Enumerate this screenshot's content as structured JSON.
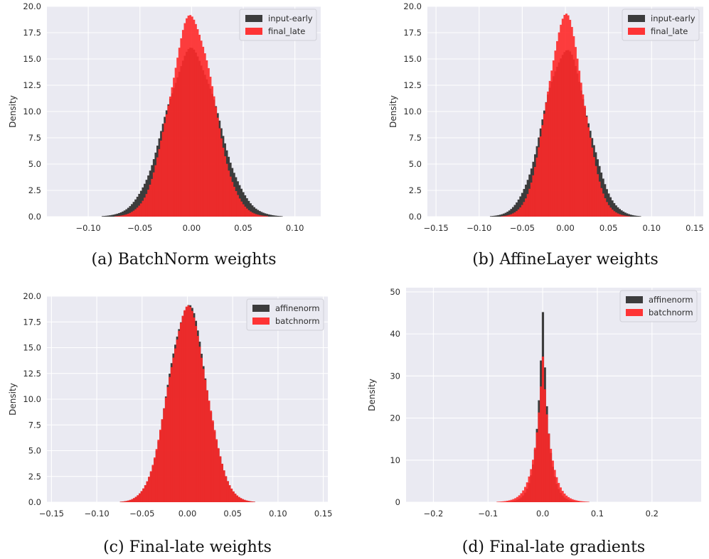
{
  "chart_data": [
    {
      "type": "histogram",
      "caption": "(a) BatchNorm weights",
      "ylabel": "Density",
      "xlim": [
        -0.14,
        0.125
      ],
      "ylim": [
        0,
        20
      ],
      "xticks": [
        -0.1,
        -0.05,
        0.0,
        0.05,
        0.1
      ],
      "xtick_labels": [
        "−0.10",
        "−0.05",
        "0.00",
        "0.05",
        "0.10"
      ],
      "yticks": [
        0,
        2.5,
        5,
        7.5,
        10,
        12.5,
        15,
        17.5,
        20
      ],
      "ytick_labels": [
        "0.0",
        "2.5",
        "5.0",
        "7.5",
        "10.0",
        "12.5",
        "15.0",
        "17.5",
        "20.0"
      ],
      "grid": true,
      "legend_position": "top-right",
      "series": [
        {
          "name": "input-early",
          "color": "#333333",
          "peak": 15.7,
          "std": 0.0254
        },
        {
          "name": "final_late",
          "color": "#ff2a2a",
          "peak": 18.9,
          "std": 0.0211
        }
      ]
    },
    {
      "type": "histogram",
      "caption": "(b) AffineLayer weights",
      "ylabel": "Density",
      "xlim": [
        -0.16,
        0.16
      ],
      "ylim": [
        0,
        20
      ],
      "xticks": [
        -0.15,
        -0.1,
        -0.05,
        0.0,
        0.05,
        0.1,
        0.15
      ],
      "xtick_labels": [
        "−0.15",
        "−0.10",
        "−0.05",
        "0.00",
        "0.05",
        "0.10",
        "0.15"
      ],
      "yticks": [
        0,
        2.5,
        5,
        7.5,
        10,
        12.5,
        15,
        17.5,
        20
      ],
      "ytick_labels": [
        "0.0",
        "2.5",
        "5.0",
        "7.5",
        "10.0",
        "12.5",
        "15.0",
        "17.5",
        "20.0"
      ],
      "grid": true,
      "legend_position": "top-right",
      "series": [
        {
          "name": "input-early",
          "color": "#333333",
          "peak": 15.7,
          "std": 0.0254
        },
        {
          "name": "final_late",
          "color": "#ff2a2a",
          "peak": 18.9,
          "std": 0.0211
        }
      ]
    },
    {
      "type": "histogram",
      "caption": "(c) Final-late weights",
      "ylabel": "Density",
      "xlim": [
        -0.155,
        0.155
      ],
      "ylim": [
        0,
        20
      ],
      "xticks": [
        -0.15,
        -0.1,
        -0.05,
        0.0,
        0.05,
        0.1,
        0.15
      ],
      "xtick_labels": [
        "−0.15",
        "−0.10",
        "−0.05",
        "0.00",
        "0.05",
        "0.10",
        "0.15"
      ],
      "yticks": [
        0,
        2.5,
        5,
        7.5,
        10,
        12.5,
        15,
        17.5,
        20
      ],
      "ytick_labels": [
        "0.0",
        "2.5",
        "5.0",
        "7.5",
        "10.0",
        "12.5",
        "15.0",
        "17.5",
        "20.0"
      ],
      "grid": true,
      "legend_position": "top-right",
      "series": [
        {
          "name": "affinenorm",
          "color": "#333333",
          "peak": 19.0,
          "std": 0.021
        },
        {
          "name": "batchnorm",
          "color": "#ff2a2a",
          "peak": 18.7,
          "std": 0.0212
        }
      ]
    },
    {
      "type": "histogram",
      "caption": "(d) Final-late gradients",
      "ylabel": "Density",
      "xlim": [
        -0.25,
        0.29
      ],
      "ylim": [
        0,
        51
      ],
      "xticks": [
        -0.2,
        -0.1,
        0.0,
        0.1,
        0.2
      ],
      "xtick_labels": [
        "−0.2",
        "−0.1",
        "0.0",
        "0.1",
        "0.2"
      ],
      "yticks": [
        0,
        10,
        20,
        30,
        40,
        50
      ],
      "ytick_labels": [
        "0",
        "10",
        "20",
        "30",
        "40",
        "50"
      ],
      "grid": true,
      "legend_position": "top-right",
      "series": [
        {
          "name": "affinenorm",
          "color": "#333333",
          "peak": 47.0,
          "scale": 0.0106
        },
        {
          "name": "batchnorm",
          "color": "#ff2a2a",
          "peak": 36.0,
          "scale": 0.0139
        }
      ]
    }
  ]
}
